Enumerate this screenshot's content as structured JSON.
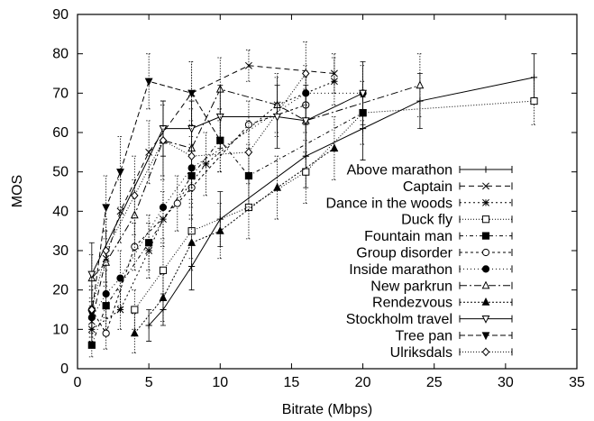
{
  "chart_data": {
    "type": "line",
    "xlabel": "Bitrate (Mbps)",
    "ylabel": "MOS",
    "xlim": [
      0,
      35
    ],
    "ylim": [
      0,
      90
    ],
    "xticks": [
      0,
      5,
      10,
      15,
      20,
      25,
      30,
      35
    ],
    "yticks": [
      0,
      10,
      20,
      30,
      40,
      50,
      60,
      70,
      80,
      90
    ],
    "grid": false,
    "legend_position": "right",
    "series": [
      {
        "name": "Above marathon",
        "marker": "plus",
        "dash": "",
        "x": [
          5,
          6,
          8,
          10,
          16,
          20,
          24,
          32
        ],
        "y": [
          11,
          15,
          26,
          38,
          54,
          61,
          68,
          74
        ],
        "err": [
          4,
          4,
          6,
          7,
          8,
          8,
          7,
          6
        ]
      },
      {
        "name": "Captain",
        "marker": "cross",
        "dash": "6,4",
        "x": [
          1,
          2,
          3,
          5,
          8,
          12,
          18
        ],
        "y": [
          12,
          28,
          40,
          55,
          70,
          77,
          75
        ],
        "err": [
          5,
          7,
          8,
          8,
          8,
          4,
          5
        ]
      },
      {
        "name": "Dance in the woods",
        "marker": "star",
        "dash": "2,3",
        "x": [
          1,
          3,
          5,
          6,
          9,
          14,
          18
        ],
        "y": [
          10,
          15,
          30,
          38,
          52,
          67,
          73
        ],
        "err": [
          4,
          5,
          7,
          7,
          8,
          7,
          6
        ]
      },
      {
        "name": "Duck fly",
        "marker": "square",
        "dash": "1,2",
        "x": [
          4,
          6,
          8,
          12,
          16,
          20,
          32
        ],
        "y": [
          15,
          25,
          35,
          41,
          50,
          65,
          68
        ],
        "err": [
          5,
          7,
          7,
          8,
          8,
          8,
          6
        ]
      },
      {
        "name": "Fountain man",
        "marker": "filled-square",
        "dash": "4,3,1,3",
        "x": [
          1,
          2,
          5,
          8,
          10,
          12,
          20
        ],
        "y": [
          6,
          16,
          32,
          49,
          58,
          49,
          65
        ],
        "err": [
          3,
          6,
          7,
          8,
          8,
          8,
          8
        ]
      },
      {
        "name": "Group disorder",
        "marker": "circle",
        "dash": "3,3",
        "x": [
          1,
          2,
          4,
          7,
          8,
          12,
          16
        ],
        "y": [
          15,
          9,
          31,
          42,
          46,
          62,
          67
        ],
        "err": [
          5,
          4,
          6,
          7,
          8,
          6,
          7
        ]
      },
      {
        "name": "Inside marathon",
        "marker": "filled-circle",
        "dash": "1,3",
        "x": [
          1,
          2,
          3,
          6,
          8,
          16,
          20
        ],
        "y": [
          13,
          19,
          23,
          41,
          51,
          70,
          70
        ],
        "err": [
          5,
          6,
          7,
          8,
          8,
          7,
          7
        ]
      },
      {
        "name": "New parkrun",
        "marker": "triangle",
        "dash": "8,3,2,3",
        "x": [
          1,
          2,
          4,
          6,
          8,
          10,
          14,
          16,
          24
        ],
        "y": [
          23,
          27,
          39,
          58,
          56,
          71,
          67,
          63,
          72
        ],
        "err": [
          6,
          8,
          9,
          10,
          10,
          8,
          8,
          8,
          8
        ]
      },
      {
        "name": "Rendezvous",
        "marker": "filled-triangle",
        "dash": "2,2",
        "x": [
          4,
          6,
          8,
          10,
          14,
          18
        ],
        "y": [
          9,
          18,
          32,
          35,
          46,
          56
        ],
        "err": [
          5,
          6,
          7,
          7,
          8,
          8
        ]
      },
      {
        "name": "Stockholm travel",
        "marker": "triangle-down",
        "dash": "",
        "x": [
          1,
          6,
          8,
          10,
          14,
          16,
          20
        ],
        "y": [
          24,
          61,
          61,
          64,
          64,
          63,
          70
        ],
        "err": [
          8,
          7,
          7,
          8,
          8,
          9,
          8
        ]
      },
      {
        "name": "Tree pan",
        "marker": "filled-triangle-down",
        "dash": "6,3",
        "x": [
          1,
          2,
          3,
          5,
          8,
          10
        ],
        "y": [
          14,
          41,
          50,
          73,
          70,
          58
        ],
        "err": [
          6,
          8,
          9,
          7,
          8,
          8
        ]
      },
      {
        "name": "Ulriksdals",
        "marker": "diamond",
        "dash": "1,2",
        "x": [
          1,
          2,
          4,
          6,
          8,
          12,
          16
        ],
        "y": [
          15,
          30,
          44,
          58,
          54,
          55,
          75
        ],
        "err": [
          6,
          8,
          10,
          9,
          9,
          8,
          8
        ]
      }
    ]
  }
}
